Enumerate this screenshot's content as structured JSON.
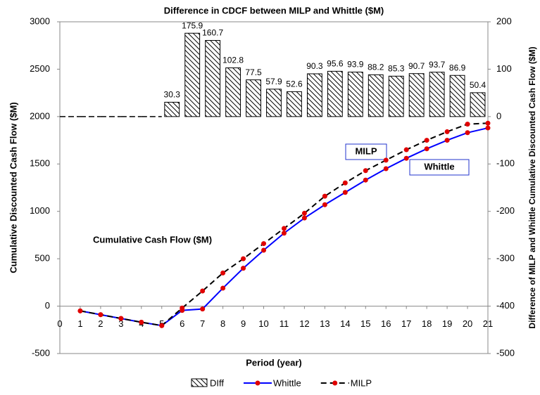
{
  "chart_data": {
    "type": "combo",
    "title": "Difference in CDCF between MILP and Whittle ($M)",
    "x_label": "Period (year)",
    "y_label": "Cumulative Discounted Cash Flow ($M)",
    "y2_label": "Difference of MILP and Whittle Cumulative Discounted Cash Flow ($M)",
    "annotations": [
      "MILP",
      "Whittle",
      "Cumulative Cash Flow ($M)"
    ],
    "x": [
      1,
      2,
      3,
      4,
      5,
      6,
      7,
      8,
      9,
      10,
      11,
      12,
      13,
      14,
      15,
      16,
      17,
      18,
      19,
      20,
      21
    ],
    "xlim": [
      0,
      21
    ],
    "xticks": [
      0,
      1,
      2,
      3,
      4,
      5,
      6,
      7,
      8,
      9,
      10,
      11,
      12,
      13,
      14,
      15,
      16,
      17,
      18,
      19,
      20,
      21
    ],
    "ylim": [
      -500,
      3000
    ],
    "yticks": [
      -500,
      0,
      500,
      1000,
      1500,
      2000,
      2500,
      3000
    ],
    "y2lim": [
      -500,
      200
    ],
    "y2ticks": [
      -500,
      -400,
      -300,
      -200,
      -100,
      0,
      100,
      200
    ],
    "series": [
      {
        "name": "DIff",
        "type": "bar",
        "axis": "y2",
        "color": "#000000",
        "values": [
          0,
          0,
          0,
          0,
          0,
          30.3,
          175.9,
          160.7,
          102.8,
          77.5,
          57.9,
          52.6,
          90.3,
          95.6,
          93.9,
          88.2,
          85.3,
          90.7,
          93.7,
          86.9,
          50.4
        ],
        "value_labels": [
          null,
          null,
          null,
          null,
          null,
          "30.3",
          "175.9",
          "160.7",
          "102.8",
          "77.5",
          "57.9",
          "52.6",
          "90.3",
          "95.6",
          "93.9",
          "88.2",
          "85.3",
          "90.7",
          "93.7",
          "86.9",
          "50.4"
        ]
      },
      {
        "name": "Whittle",
        "type": "line",
        "color": "#0000ff",
        "marker_color": "#e00000",
        "dashed": false,
        "values": [
          -50,
          -90,
          -130,
          -170,
          -205,
          -45,
          -30,
          190,
          400,
          590,
          770,
          930,
          1070,
          1200,
          1330,
          1450,
          1560,
          1660,
          1750,
          1830,
          1880
        ]
      },
      {
        "name": "MILP",
        "type": "line",
        "color": "#000000",
        "marker_color": "#e00000",
        "dashed": true,
        "values": [
          -50,
          -90,
          -130,
          -170,
          -205,
          -20,
          160,
          350,
          500,
          660,
          820,
          980,
          1160,
          1300,
          1430,
          1540,
          1650,
          1750,
          1840,
          1920,
          1930
        ]
      }
    ]
  }
}
